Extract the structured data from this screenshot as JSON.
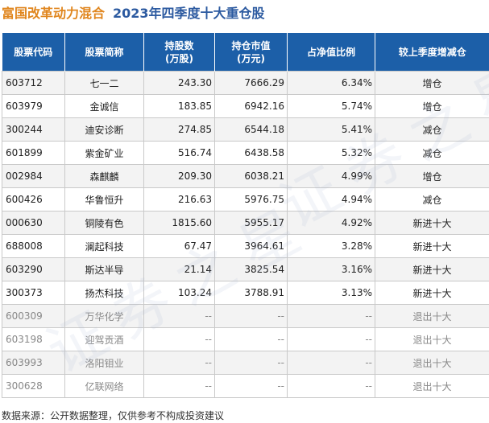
{
  "title": {
    "fund_name": "富国改革动力混合",
    "period": "2023年四季度十大重仓股"
  },
  "table": {
    "headers": {
      "code": "股票代码",
      "name": "股票简称",
      "shares_line1": "持股数",
      "shares_line2": "(万股)",
      "value_line1": "持仓市值",
      "value_line2": "(万元)",
      "ratio": "占净值比例",
      "change": "较上季度增减仓"
    },
    "rows": [
      {
        "code": "603712",
        "name": "七一二",
        "shares": "243.30",
        "value": "7666.29",
        "ratio": "6.34%",
        "change": "增仓",
        "change_color": "red",
        "exited": false
      },
      {
        "code": "603979",
        "name": "金诚信",
        "shares": "183.85",
        "value": "6942.16",
        "ratio": "5.74%",
        "change": "增仓",
        "change_color": "red",
        "exited": false
      },
      {
        "code": "300244",
        "name": "迪安诊断",
        "shares": "274.85",
        "value": "6544.18",
        "ratio": "5.41%",
        "change": "减仓",
        "change_color": "green",
        "exited": false
      },
      {
        "code": "601899",
        "name": "紫金矿业",
        "shares": "516.74",
        "value": "6438.58",
        "ratio": "5.32%",
        "change": "减仓",
        "change_color": "green",
        "exited": false
      },
      {
        "code": "002984",
        "name": "森麒麟",
        "shares": "209.30",
        "value": "6038.21",
        "ratio": "4.99%",
        "change": "增仓",
        "change_color": "red",
        "exited": false
      },
      {
        "code": "600426",
        "name": "华鲁恒升",
        "shares": "216.63",
        "value": "5976.75",
        "ratio": "4.94%",
        "change": "减仓",
        "change_color": "green",
        "exited": false
      },
      {
        "code": "000630",
        "name": "铜陵有色",
        "shares": "1815.60",
        "value": "5955.17",
        "ratio": "4.92%",
        "change": "新进十大",
        "change_color": "red",
        "exited": false
      },
      {
        "code": "688008",
        "name": "澜起科技",
        "shares": "67.47",
        "value": "3964.61",
        "ratio": "3.28%",
        "change": "新进十大",
        "change_color": "red",
        "exited": false
      },
      {
        "code": "603290",
        "name": "斯达半导",
        "shares": "21.14",
        "value": "3825.54",
        "ratio": "3.16%",
        "change": "新进十大",
        "change_color": "red",
        "exited": false
      },
      {
        "code": "300373",
        "name": "扬杰科技",
        "shares": "103.24",
        "value": "3788.91",
        "ratio": "3.13%",
        "change": "新进十大",
        "change_color": "red",
        "exited": false
      },
      {
        "code": "600309",
        "name": "万华化学",
        "shares": "--",
        "value": "--",
        "ratio": "--",
        "change": "退出十大",
        "change_color": "green",
        "exited": true
      },
      {
        "code": "603198",
        "name": "迎驾贡酒",
        "shares": "--",
        "value": "--",
        "ratio": "--",
        "change": "退出十大",
        "change_color": "green",
        "exited": true
      },
      {
        "code": "603993",
        "name": "洛阳钼业",
        "shares": "--",
        "value": "--",
        "ratio": "--",
        "change": "退出十大",
        "change_color": "green",
        "exited": true
      },
      {
        "code": "300628",
        "name": "亿联网络",
        "shares": "--",
        "value": "--",
        "ratio": "--",
        "change": "退出十大",
        "change_color": "green",
        "exited": true
      }
    ]
  },
  "footer": {
    "source": "数据来源：公开数据整理，仅供参考不构成投资建议"
  },
  "watermark": {
    "text": "证券之星"
  },
  "colors": {
    "fund_title": "#e0861e",
    "period_title": "#2c5aa0",
    "header_bg": "#1c5fa8",
    "increase": "#e02020",
    "decrease": "#2a8a1f"
  }
}
